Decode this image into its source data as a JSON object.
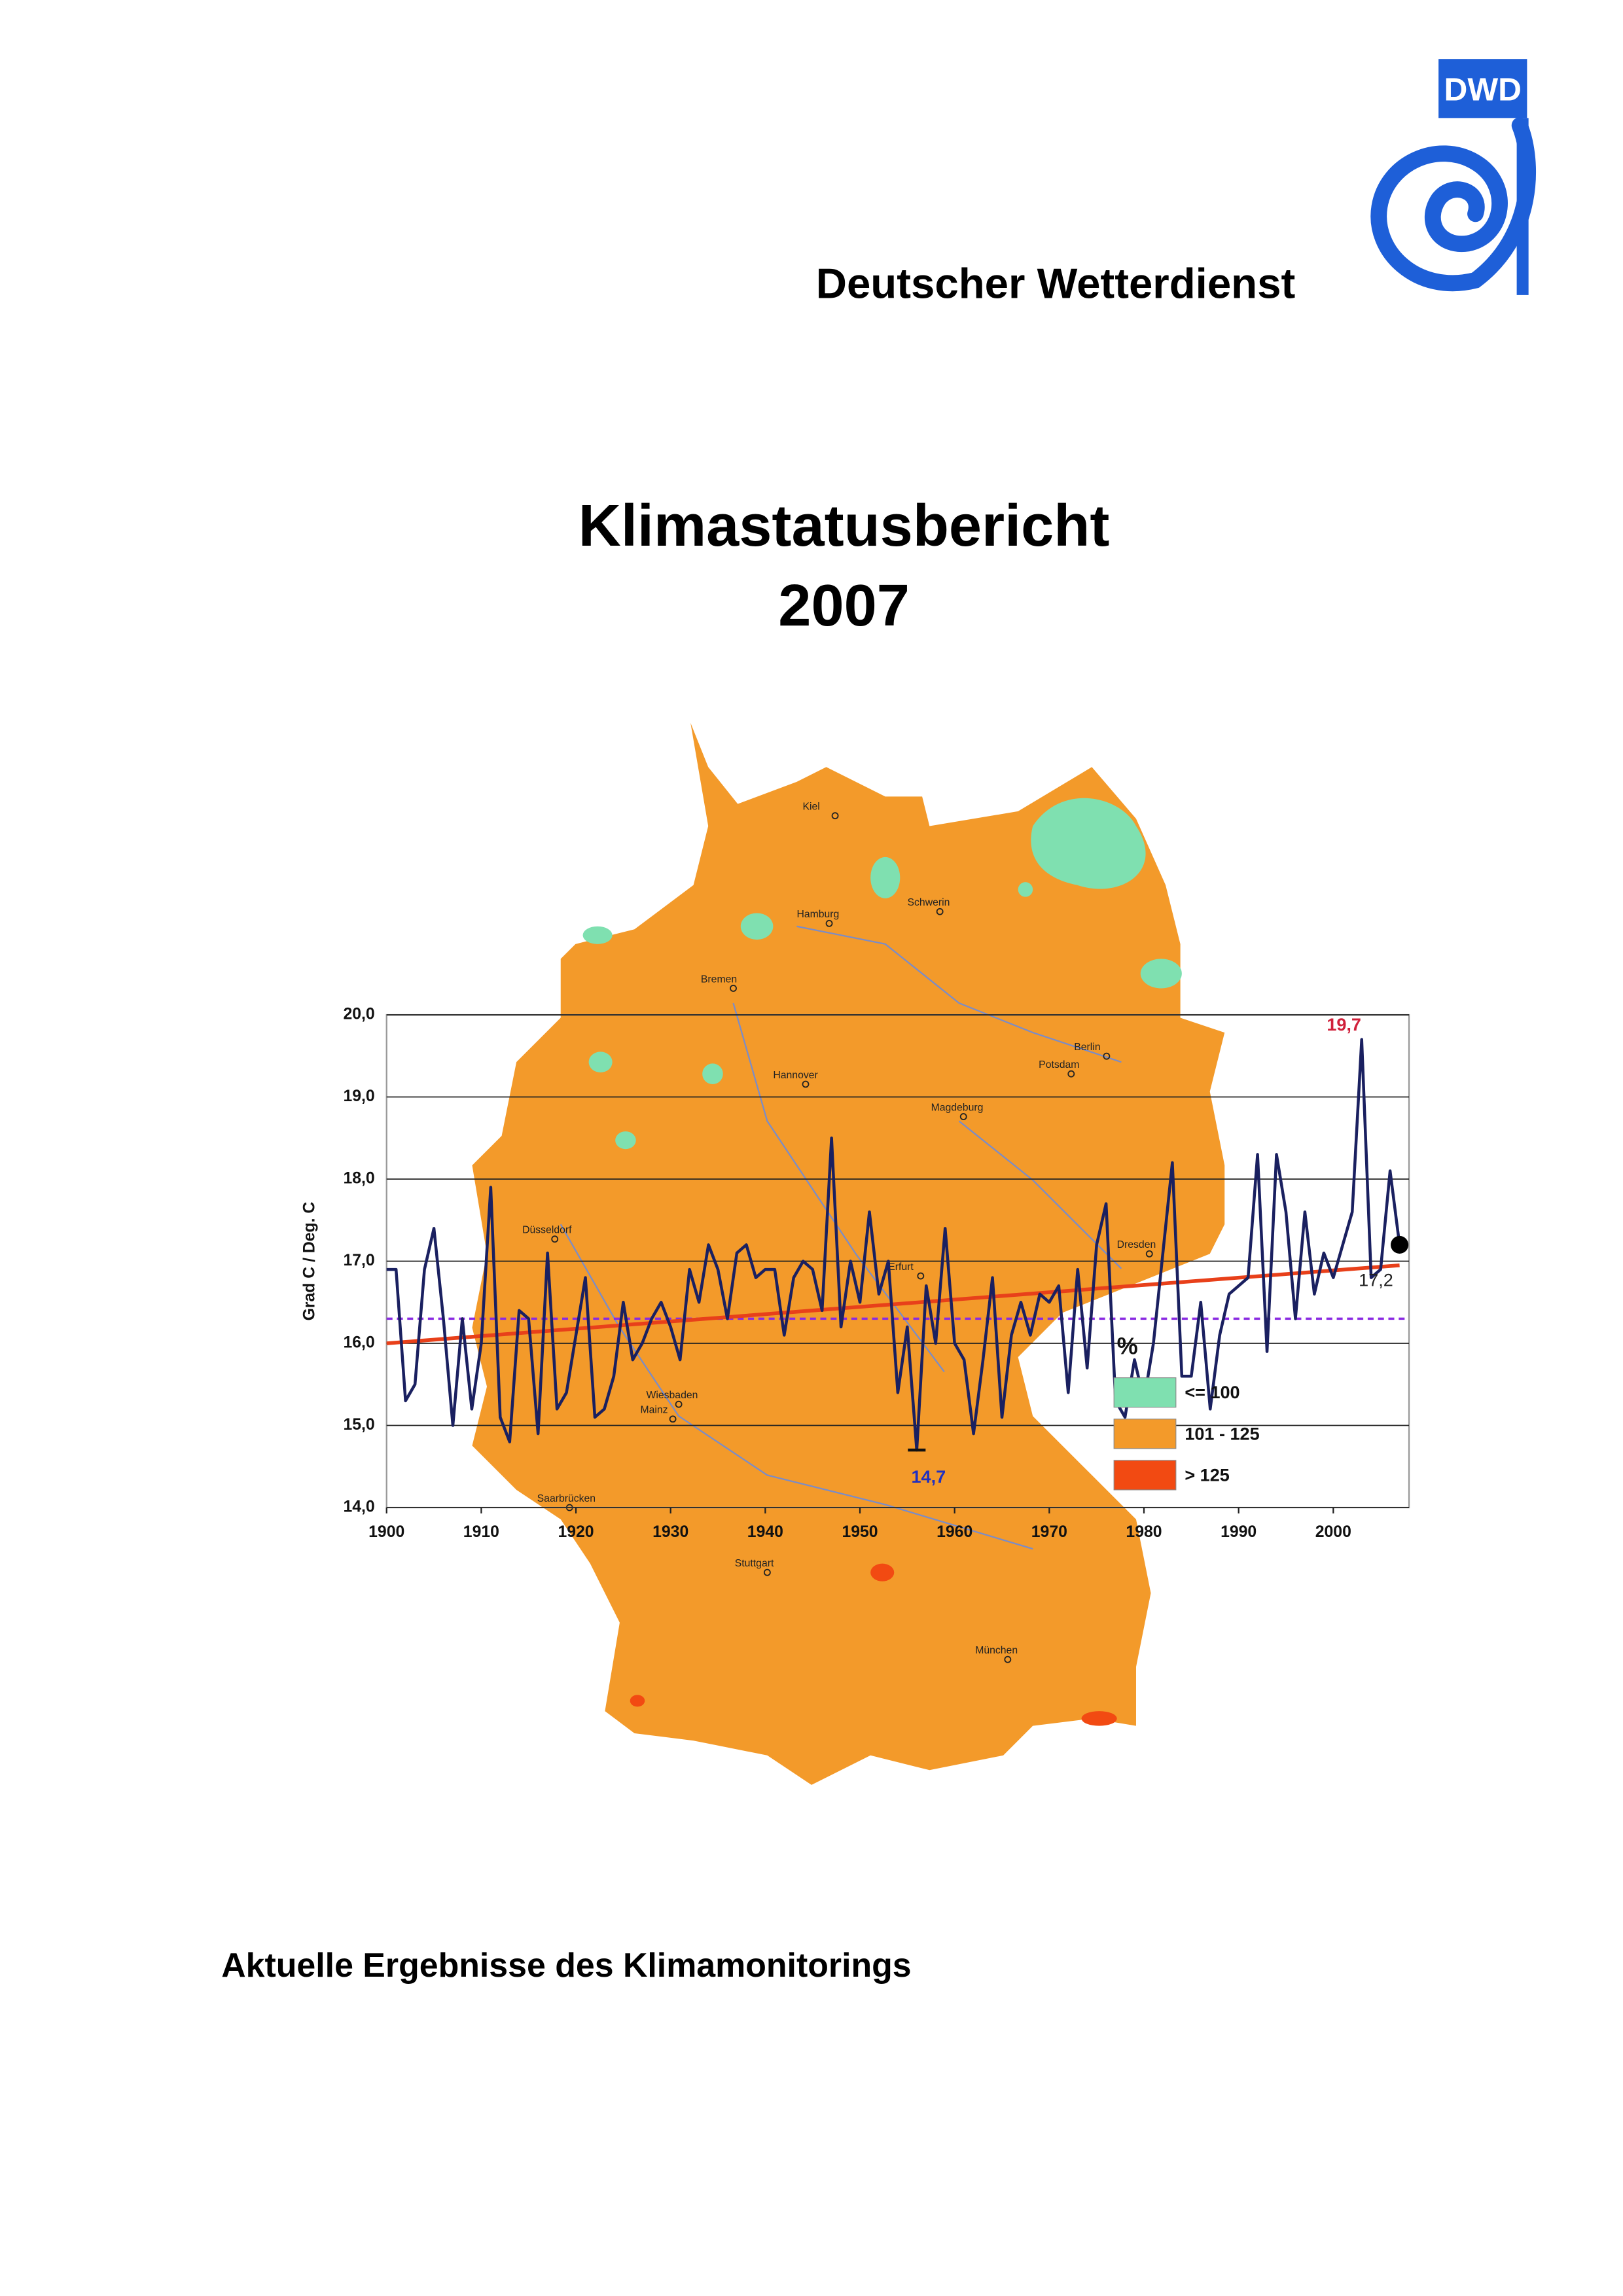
{
  "header": {
    "logo_text": "DWD",
    "organization": "Deutscher Wetterdienst"
  },
  "title": {
    "line1": "Klimastatusbericht",
    "line2": "2007"
  },
  "subtitle": "Aktuelle Ergebnisse des Klimamonitorings",
  "map": {
    "cities": [
      "Kiel",
      "Hamburg",
      "Schwerin",
      "Bremen",
      "Berlin",
      "Potsdam",
      "Hannover",
      "Magdeburg",
      "Düsseldorf",
      "Erfurt",
      "Dresden",
      "Wiesbaden",
      "Mainz",
      "Saarbrücken",
      "Stuttgart",
      "München"
    ],
    "legend_title": "%",
    "legend": [
      {
        "label": "<= 100",
        "color": "#7fe0b0"
      },
      {
        "label": "101 - 125",
        "color": "#f39a2a"
      },
      {
        "label": "> 125",
        "color": "#f24a12"
      }
    ]
  },
  "chart_data": {
    "type": "line",
    "y_label": "Grad C / Deg. C",
    "x": [
      1900,
      1901,
      1902,
      1903,
      1904,
      1905,
      1906,
      1907,
      1908,
      1909,
      1910,
      1911,
      1912,
      1913,
      1914,
      1915,
      1916,
      1917,
      1918,
      1919,
      1920,
      1921,
      1922,
      1923,
      1924,
      1925,
      1926,
      1927,
      1928,
      1929,
      1930,
      1931,
      1932,
      1933,
      1934,
      1935,
      1936,
      1937,
      1938,
      1939,
      1940,
      1941,
      1942,
      1943,
      1944,
      1945,
      1946,
      1947,
      1948,
      1949,
      1950,
      1951,
      1952,
      1953,
      1954,
      1955,
      1956,
      1957,
      1958,
      1959,
      1960,
      1961,
      1962,
      1963,
      1964,
      1965,
      1966,
      1967,
      1968,
      1969,
      1970,
      1971,
      1972,
      1973,
      1974,
      1975,
      1976,
      1977,
      1978,
      1979,
      1980,
      1981,
      1982,
      1983,
      1984,
      1985,
      1986,
      1987,
      1988,
      1989,
      1990,
      1991,
      1992,
      1993,
      1994,
      1995,
      1996,
      1997,
      1998,
      1999,
      2000,
      2001,
      2002,
      2003,
      2004,
      2005,
      2006,
      2007
    ],
    "series": [
      {
        "color": "#1a2060",
        "values": [
          16.9,
          16.9,
          15.3,
          15.5,
          16.9,
          17.4,
          16.3,
          15.0,
          16.3,
          15.2,
          16.0,
          17.9,
          15.1,
          14.8,
          16.4,
          16.3,
          14.9,
          17.1,
          15.2,
          15.4,
          16.1,
          16.8,
          15.1,
          15.2,
          15.6,
          16.5,
          15.8,
          16.0,
          16.3,
          16.5,
          16.2,
          15.8,
          16.9,
          16.5,
          17.2,
          16.9,
          16.3,
          17.1,
          17.2,
          16.8,
          16.9,
          16.9,
          16.1,
          16.8,
          17.0,
          16.9,
          16.4,
          18.5,
          16.2,
          17.0,
          16.5,
          17.6,
          16.6,
          17.0,
          15.4,
          16.2,
          14.7,
          16.7,
          16.0,
          17.4,
          16.0,
          15.8,
          14.9,
          15.8,
          16.8,
          15.1,
          16.1,
          16.5,
          16.1,
          16.6,
          16.5,
          16.7,
          15.4,
          16.9,
          15.7,
          17.2,
          17.7,
          15.3,
          15.1,
          15.8,
          15.3,
          16.0,
          17.1,
          18.2,
          15.6,
          15.6,
          16.5,
          15.2,
          16.1,
          16.6,
          16.7,
          16.8,
          18.3,
          15.9,
          18.3,
          17.6,
          16.3,
          17.6,
          16.6,
          17.1,
          16.8,
          17.2,
          17.6,
          19.7,
          16.8,
          16.9,
          18.1,
          17.2
        ]
      }
    ],
    "trend": {
      "color": "#e8401a",
      "x": [
        1900,
        2007
      ],
      "values": [
        16.0,
        16.95
      ]
    },
    "mean": {
      "color": "#8a2be2",
      "value": 16.3
    },
    "annotations": [
      {
        "text": "19,7",
        "x": 2003,
        "y": 19.7,
        "color": "#d0203a"
      },
      {
        "text": "14,7",
        "x": 1956,
        "y": 14.7,
        "color": "#2030c0"
      },
      {
        "text": "17,2",
        "x": 2007,
        "y": 17.2,
        "color": "#222222"
      }
    ],
    "xlim": [
      1900,
      2008
    ],
    "ylim": [
      14,
      20
    ],
    "xticks": [
      1900,
      1910,
      1920,
      1930,
      1940,
      1950,
      1960,
      1970,
      1980,
      1990,
      2000
    ],
    "yticks": [
      {
        "value": 14,
        "label": "14,0"
      },
      {
        "value": 15,
        "label": "15,0"
      },
      {
        "value": 16,
        "label": "16,0"
      },
      {
        "value": 17,
        "label": "17,0"
      },
      {
        "value": 18,
        "label": "18,0"
      },
      {
        "value": 19,
        "label": "19,0"
      },
      {
        "value": 20,
        "label": "20,0"
      }
    ],
    "grid": true
  }
}
